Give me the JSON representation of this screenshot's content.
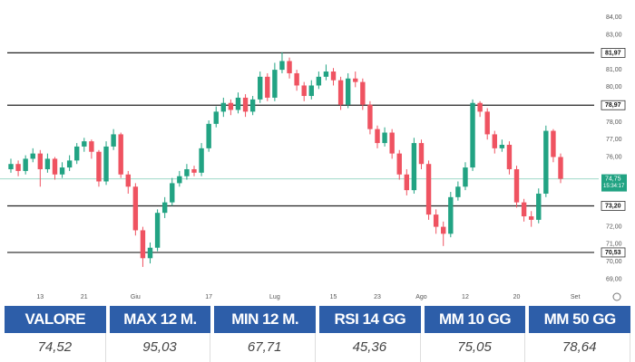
{
  "chart_data": {
    "type": "candlestick",
    "categories": [
      null,
      null,
      null,
      null,
      "13",
      null,
      null,
      null,
      null,
      null,
      "21",
      null,
      null,
      null,
      null,
      null,
      null,
      "Giu",
      null,
      null,
      null,
      null,
      null,
      null,
      null,
      null,
      null,
      "17",
      null,
      null,
      null,
      null,
      null,
      null,
      null,
      null,
      "Lug",
      null,
      null,
      null,
      null,
      null,
      null,
      null,
      "15",
      null,
      null,
      null,
      null,
      null,
      "23",
      null,
      null,
      null,
      null,
      null,
      "Ago",
      null,
      null,
      null,
      null,
      null,
      "12",
      null,
      null,
      null,
      null,
      null,
      null,
      "20",
      null,
      null,
      null,
      null,
      null,
      null,
      null,
      "Set",
      null
    ],
    "open": [
      75.3,
      75.6,
      75.2,
      75.9,
      76.2,
      75.3,
      75.9,
      75.0,
      75.4,
      75.8,
      76.6,
      76.9,
      76.3,
      74.6,
      76.6,
      77.3,
      75.0,
      74.3,
      71.8,
      70.2,
      70.8,
      72.8,
      73.4,
      74.5,
      74.9,
      75.3,
      75.1,
      76.5,
      77.9,
      78.6,
      79.1,
      78.7,
      79.4,
      78.6,
      79.3,
      80.6,
      79.4,
      81.0,
      81.5,
      80.8,
      80.1,
      79.5,
      80.1,
      80.6,
      80.9,
      80.4,
      79.0,
      80.5,
      80.3,
      79.0,
      77.6,
      76.8,
      77.4,
      76.2,
      75.0,
      74.1,
      76.8,
      75.6,
      72.7,
      72.0,
      71.6,
      73.7,
      74.3,
      75.4,
      79.1,
      78.6,
      77.3,
      76.5,
      76.7,
      75.3,
      73.4,
      72.6,
      72.4,
      73.9,
      77.5,
      76.0,
      null,
      null,
      null
    ],
    "high": [
      75.9,
      75.8,
      76.1,
      76.5,
      76.4,
      76.2,
      76.0,
      75.7,
      76.1,
      76.8,
      77.1,
      77.0,
      76.4,
      76.9,
      77.6,
      77.4,
      75.2,
      74.5,
      72.0,
      71.1,
      73.0,
      73.7,
      74.8,
      75.2,
      75.6,
      75.5,
      76.8,
      78.1,
      78.9,
      79.4,
      79.3,
      79.7,
      79.6,
      79.5,
      80.9,
      80.8,
      81.4,
      82.0,
      81.7,
      81.0,
      80.3,
      80.4,
      80.9,
      81.3,
      81.1,
      80.6,
      80.8,
      80.9,
      80.5,
      79.2,
      77.8,
      77.7,
      77.6,
      76.4,
      75.3,
      77.1,
      77.0,
      75.8,
      73.0,
      72.3,
      74.0,
      74.6,
      75.7,
      79.3,
      79.2,
      78.8,
      77.5,
      77.0,
      76.9,
      75.5,
      73.6,
      72.9,
      74.2,
      77.8,
      77.6,
      76.2,
      null,
      null,
      null
    ],
    "low": [
      75.1,
      74.9,
      75.0,
      75.7,
      74.3,
      75.1,
      74.7,
      74.8,
      75.2,
      75.6,
      76.3,
      75.9,
      74.3,
      74.4,
      76.4,
      74.8,
      73.9,
      71.5,
      69.7,
      69.9,
      70.6,
      72.5,
      73.2,
      74.3,
      74.7,
      74.9,
      74.9,
      76.3,
      77.7,
      78.3,
      78.4,
      78.5,
      78.3,
      78.4,
      79.1,
      79.2,
      79.2,
      80.8,
      80.5,
      79.8,
      79.2,
      79.3,
      79.9,
      80.4,
      80.1,
      78.7,
      78.8,
      80.0,
      78.7,
      77.3,
      76.5,
      76.6,
      75.9,
      74.7,
      73.8,
      73.9,
      75.3,
      72.4,
      71.6,
      70.9,
      71.4,
      73.5,
      74.1,
      75.2,
      78.3,
      77.0,
      76.2,
      76.3,
      75.0,
      73.1,
      72.3,
      72.0,
      72.2,
      73.7,
      75.7,
      74.5,
      null,
      null,
      null
    ],
    "close": [
      75.6,
      75.2,
      75.9,
      76.2,
      75.3,
      75.9,
      75.0,
      75.4,
      75.8,
      76.6,
      76.9,
      76.3,
      74.6,
      76.6,
      77.3,
      75.0,
      74.3,
      71.8,
      70.2,
      70.8,
      72.8,
      73.4,
      74.5,
      74.9,
      75.3,
      75.1,
      76.5,
      77.9,
      78.6,
      79.1,
      78.7,
      79.4,
      78.6,
      79.3,
      80.6,
      79.4,
      81.0,
      81.5,
      80.8,
      80.1,
      79.5,
      80.1,
      80.6,
      80.9,
      80.4,
      79.0,
      80.5,
      80.3,
      79.0,
      77.6,
      76.8,
      77.4,
      76.2,
      75.0,
      74.1,
      76.8,
      75.6,
      72.7,
      72.0,
      71.6,
      73.7,
      74.3,
      75.4,
      79.1,
      78.6,
      77.3,
      76.5,
      76.7,
      75.3,
      73.4,
      72.6,
      72.4,
      73.9,
      77.5,
      76.0,
      74.75,
      null,
      null,
      null
    ],
    "up_color": "#22a383",
    "down_color": "#ef5361",
    "ylim": [
      68.4,
      85.0
    ],
    "yticks": [
      {
        "value": 84,
        "label": "84,00"
      },
      {
        "value": 83,
        "label": "83,00"
      },
      {
        "value": 81,
        "label": "81,00"
      },
      {
        "value": 80,
        "label": "80,00"
      },
      {
        "value": 78,
        "label": "78,00"
      },
      {
        "value": 77,
        "label": "77,00"
      },
      {
        "value": 76,
        "label": "76,00"
      },
      {
        "value": 72,
        "label": "72,00"
      },
      {
        "value": 71,
        "label": "71,00"
      },
      {
        "value": 70,
        "label": "70,00"
      },
      {
        "value": 69,
        "label": "69,00"
      }
    ],
    "grid": false,
    "reference_lines": [
      {
        "value": 81.97,
        "label": "81,97"
      },
      {
        "value": 78.97,
        "label": "78,97"
      },
      {
        "value": 73.2,
        "label": "73,20"
      },
      {
        "value": 70.53,
        "label": "70,53"
      }
    ],
    "last_price": {
      "value": 74.75,
      "label": "74,75"
    },
    "last_time": "15:34:17"
  },
  "table": {
    "headers": [
      "VALORE",
      "MAX 12 M.",
      "MIN 12 M.",
      "RSI 14 GG",
      "MM 10 GG",
      "MM 50 GG"
    ],
    "rows": [
      [
        "74,52",
        "95,03",
        "67,71",
        "45,36",
        "75,05",
        "78,64"
      ]
    ]
  }
}
